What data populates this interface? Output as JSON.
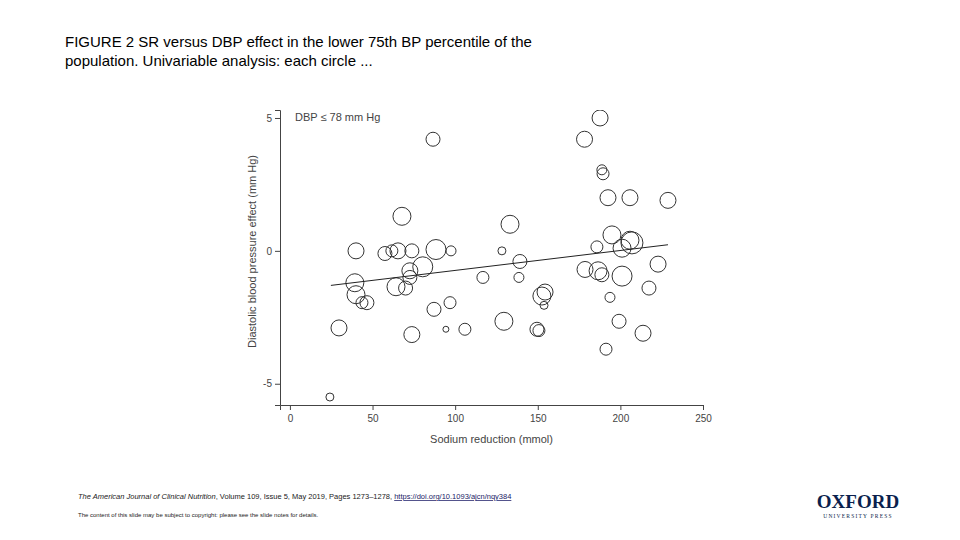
{
  "chart_data": {
    "type": "scatter",
    "title": "FIGURE 2 SR versus DBP effect in the lower 75th BP percentile of the population. Univariable analysis: each circle ...",
    "annotation": "DBP ≤ 78 mm Hg",
    "x_label": "Sodium reduction (mmol)",
    "y_label": "Diastolic blood pressure effect (mm Hg)",
    "marker": "circle",
    "x": [
      86.6,
      187.7,
      178.3,
      188.8,
      189.5,
      192.5,
      205.8,
      228.8,
      67.8,
      133.2,
      40,
      57.5,
      61.7,
      65.4,
      73.8,
      88.4,
      97.5,
      128.3,
      139.2,
      185.8,
      194.9,
      205.8,
      207,
      201,
      80.4,
      72.6,
      72.6,
      116.8,
      138.6,
      39.3,
      64.2,
      178.6,
      186.5,
      188.8,
      201,
      222.8,
      70,
      40,
      43.6,
      46.6,
      154.4,
      152.5,
      153.8,
      96.9,
      87.2,
      193.7,
      217.3,
      29.7,
      129.5,
      149.5,
      150.7,
      105.9,
      94.4,
      73.8,
      199.2,
      213.7,
      191.3,
      24.2
    ],
    "values": [
      4.2,
      5.0,
      4.2,
      3.05,
      2.9,
      2.0,
      2.0,
      1.9,
      1.3,
      1.0,
      0,
      -0.1,
      0,
      0,
      0,
      0.05,
      0,
      0,
      -0.4,
      0.15,
      0.6,
      0.4,
      0.3,
      0.1,
      -0.6,
      -0.75,
      -1.0,
      -1.0,
      -1.0,
      -1.2,
      -1.35,
      -0.7,
      -0.75,
      -0.9,
      -0.95,
      -0.5,
      -1.4,
      -1.65,
      -1.95,
      -1.95,
      -1.55,
      -1.7,
      -2.05,
      -1.95,
      -2.2,
      -1.75,
      -1.4,
      -2.9,
      -2.65,
      -2.95,
      -3.0,
      -2.95,
      -2.95,
      -3.15,
      -2.65,
      -3.1,
      -3.7,
      -5.5
    ],
    "sizes": [
      7,
      8,
      8,
      5,
      6,
      8,
      8,
      8,
      9,
      9,
      8,
      7,
      6,
      8,
      7,
      10,
      5,
      4,
      7,
      6,
      9,
      9,
      11,
      9,
      10,
      8,
      7,
      6,
      5,
      9,
      9,
      8,
      9,
      7,
      10,
      8,
      7,
      9,
      6,
      7,
      8,
      9,
      4,
      6,
      7,
      5,
      7,
      8,
      9,
      7,
      6,
      6,
      3,
      8,
      7,
      8,
      6,
      4
    ],
    "fit": {
      "x": [
        24.8,
        228.8
      ],
      "values": [
        -1.3,
        0.23
      ]
    },
    "xlim": [
      -6,
      250
    ],
    "xticks": [
      0,
      50,
      100,
      150,
      200,
      250
    ],
    "ylim": [
      -5.8,
      5.3
    ],
    "yticks": [
      -5,
      0,
      5
    ],
    "grid": false
  },
  "source": {
    "journal": "The American Journal of Clinical Nutrition",
    "details": ", Volume 109, Issue 5, May 2019, Pages 1273–1278, ",
    "doi": "https://doi.org/10.1093/ajcn/nqy384"
  },
  "copyright": "The content of this slide may be subject to copyright: please see the slide notes for details.",
  "logo": {
    "name": "OXFORD",
    "subtitle": "UNIVERSITY PRESS"
  }
}
